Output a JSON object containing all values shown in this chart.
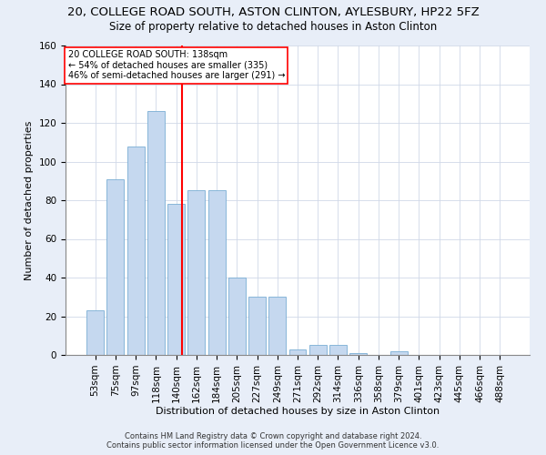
{
  "title1": "20, COLLEGE ROAD SOUTH, ASTON CLINTON, AYLESBURY, HP22 5FZ",
  "title2": "Size of property relative to detached houses in Aston Clinton",
  "xlabel": "Distribution of detached houses by size in Aston Clinton",
  "ylabel": "Number of detached properties",
  "footnote1": "Contains HM Land Registry data © Crown copyright and database right 2024.",
  "footnote2": "Contains public sector information licensed under the Open Government Licence v3.0.",
  "bar_labels": [
    "53sqm",
    "75sqm",
    "97sqm",
    "118sqm",
    "140sqm",
    "162sqm",
    "184sqm",
    "205sqm",
    "227sqm",
    "249sqm",
    "271sqm",
    "292sqm",
    "314sqm",
    "336sqm",
    "358sqm",
    "379sqm",
    "401sqm",
    "423sqm",
    "445sqm",
    "466sqm",
    "488sqm"
  ],
  "bar_values": [
    23,
    91,
    108,
    126,
    78,
    85,
    85,
    40,
    30,
    30,
    3,
    5,
    5,
    1,
    0,
    2,
    0,
    0,
    0,
    0,
    0
  ],
  "bar_color": "#c5d8ef",
  "bar_edge_color": "#7aaed4",
  "vline_color": "red",
  "annotation_title": "20 COLLEGE ROAD SOUTH: 138sqm",
  "annotation_line1": "← 54% of detached houses are smaller (335)",
  "annotation_line2": "46% of semi-detached houses are larger (291) →",
  "annotation_box_color": "white",
  "annotation_box_edge": "red",
  "ylim": [
    0,
    160
  ],
  "yticks": [
    0,
    20,
    40,
    60,
    80,
    100,
    120,
    140,
    160
  ],
  "background_color": "#e8eef8",
  "plot_bg_color": "white",
  "title1_fontsize": 9.5,
  "title2_fontsize": 8.5,
  "xlabel_fontsize": 8,
  "ylabel_fontsize": 8,
  "tick_fontsize": 7.5,
  "footnote_fontsize": 6
}
